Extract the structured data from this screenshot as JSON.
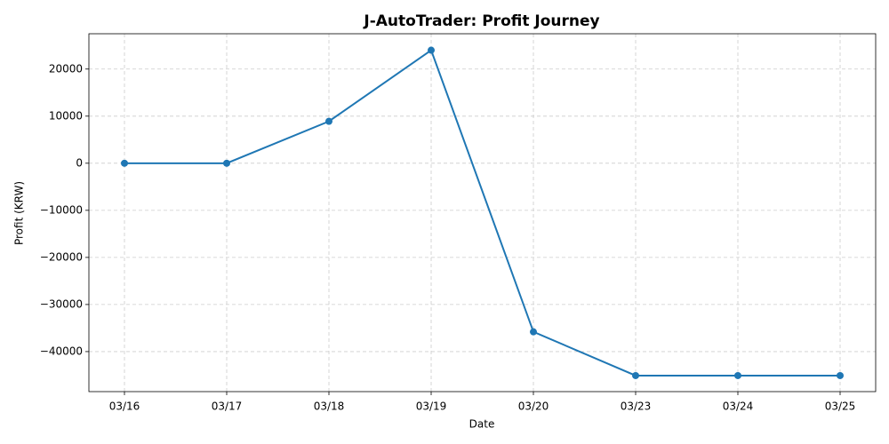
{
  "chart_data": {
    "type": "line",
    "title": "J-AutoTrader: Profit Journey",
    "x_label": "Date",
    "y_label": "Profit (KRW)",
    "categories": [
      "03/16",
      "03/17",
      "03/18",
      "03/19",
      "03/20",
      "03/23",
      "03/24",
      "03/25"
    ],
    "series": [
      {
        "name": "Profit",
        "color": "#1f77b4",
        "values": [
          0,
          0,
          8900,
          24000,
          -35800,
          -45100,
          -45100,
          -45100
        ]
      }
    ],
    "ylim": [
      -48500,
      27500
    ],
    "yticks": [
      {
        "value": -40000,
        "label": "−40000"
      },
      {
        "value": -30000,
        "label": "−30000"
      },
      {
        "value": -20000,
        "label": "−20000"
      },
      {
        "value": -10000,
        "label": "−10000"
      },
      0,
      10000,
      20000
    ],
    "grid": true
  }
}
